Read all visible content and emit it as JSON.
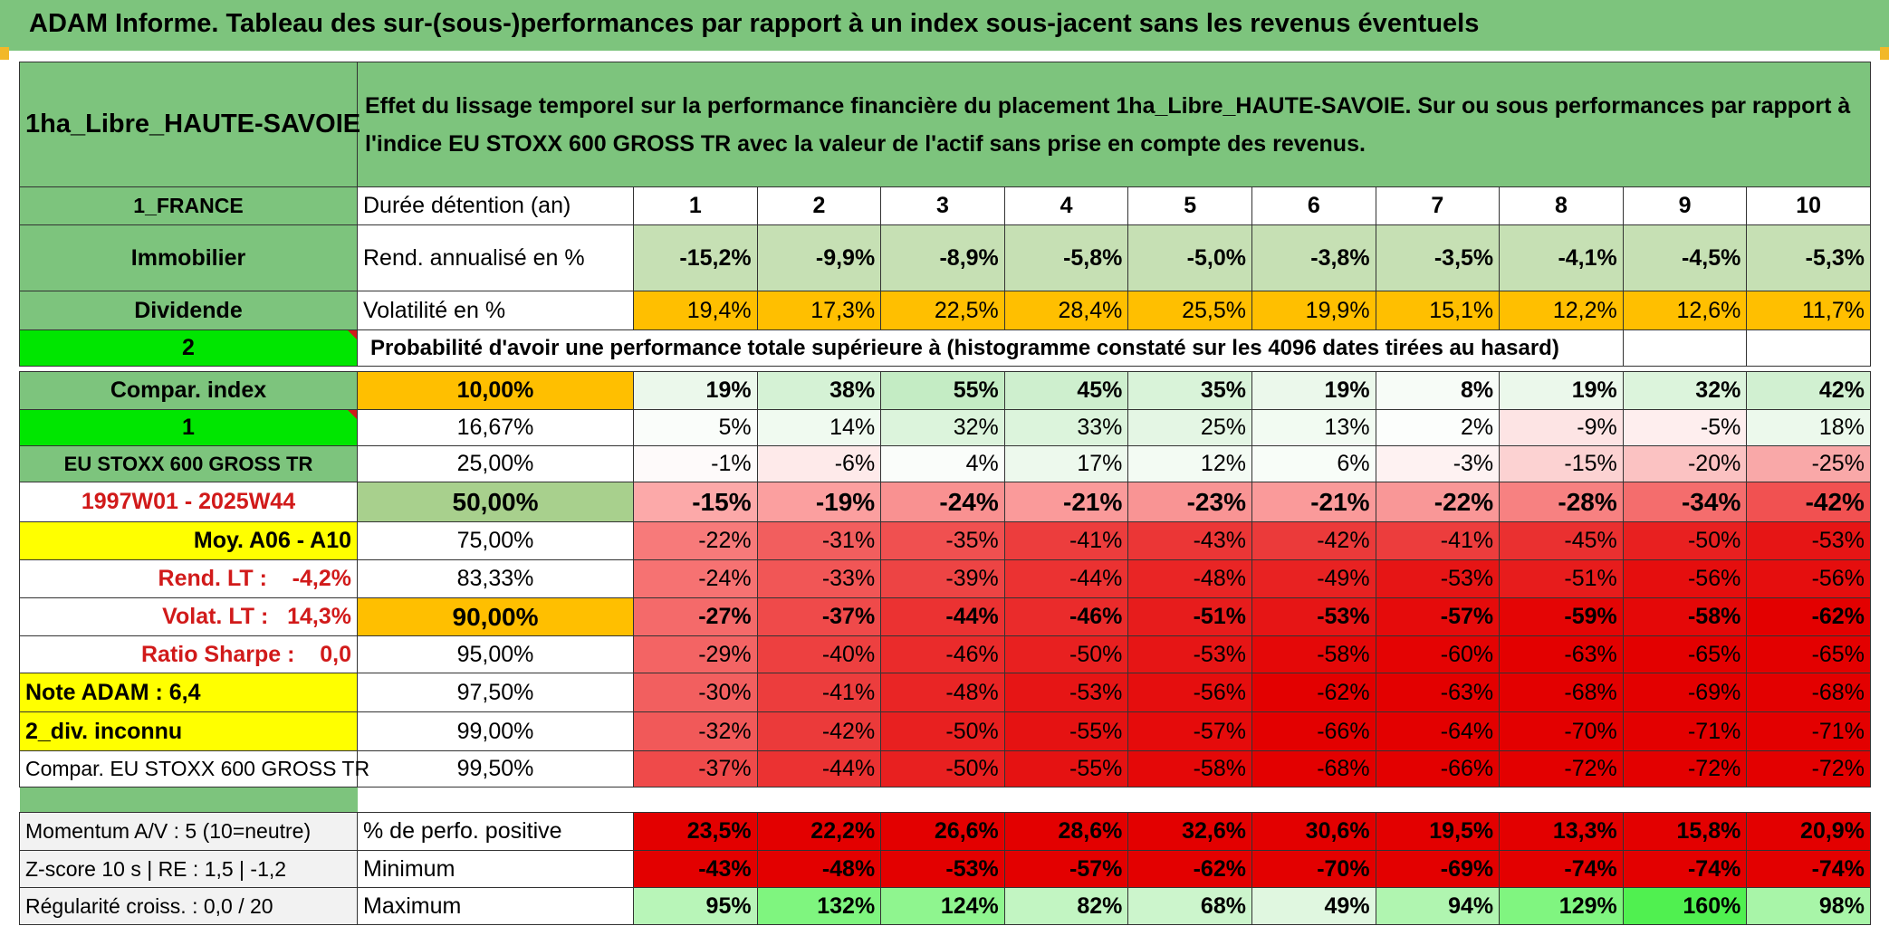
{
  "title": "ADAM Informe. Tableau des sur-(sous-)performances par rapport à un index sous-jacent sans les revenus éventuels",
  "fund_name": "1ha_Libre_HAUTE-SAVOIE",
  "description": "Effet du lissage temporel sur la performance financière du placement 1ha_Libre_HAUTE-SAVOIE. Sur ou sous performances par rapport à l'indice EU STOXX 600 GROSS TR avec la valeur de l'actif sans prise en compte des revenus.",
  "left": {
    "country": "1_FRANCE",
    "category": "Immobilier",
    "type": "Dividende",
    "index_no": "2",
    "compar_index": "Compar. index",
    "one": "1",
    "index_name": "EU STOXX 600 GROSS TR",
    "period": "1997W01 - 2025W44",
    "moy": "Moy. A06 - A10",
    "rend_lt": "Rend. LT :    -4,2%",
    "volat_lt": "Volat. LT :   14,3%",
    "sharpe": "Ratio Sharpe :    0,0",
    "note": "Note ADAM : 6,4",
    "div": "2_div. inconnu",
    "compar": "Compar. EU STOXX 600 GROSS TR",
    "momentum": "Momentum A/V : 5 (10=neutre)",
    "zscore": "Z-score 10 s | RE : 1,5 | -1,2",
    "regularite": "Régularité croiss. : 0,0 / 20"
  },
  "labels": {
    "duree": "Durée détention (an)",
    "rend": "Rend. annualisé en %",
    "volat": "Volatilité en %",
    "proba": "Probabilité d'avoir une performance totale supérieure à (histogramme constaté sur les 4096 dates tirées au hasard)",
    "perfo_pos": "% de perfo. positive",
    "minimum": "Minimum",
    "maximum": "Maximum"
  },
  "years": [
    "1",
    "2",
    "3",
    "4",
    "5",
    "6",
    "7",
    "8",
    "9",
    "10"
  ],
  "rend": [
    "-15,2%",
    "-9,9%",
    "-8,9%",
    "-5,8%",
    "-5,0%",
    "-3,8%",
    "-3,5%",
    "-4,1%",
    "-4,5%",
    "-5,3%"
  ],
  "volat": [
    "19,4%",
    "17,3%",
    "22,5%",
    "28,4%",
    "25,5%",
    "19,9%",
    "15,1%",
    "12,2%",
    "12,6%",
    "11,7%"
  ],
  "quantiles": [
    {
      "label": "10,00%",
      "values": [
        "19%",
        "38%",
        "55%",
        "45%",
        "35%",
        "19%",
        "8%",
        "19%",
        "32%",
        "42%"
      ],
      "colors": [
        "#ebf8eb",
        "#d5f2d5",
        "#c4ecc4",
        "#ceefce",
        "#d9f3d9",
        "#ebf8eb",
        "#f7fcf7",
        "#ebf8eb",
        "#dcf4dc",
        "#d1f0d1"
      ]
    },
    {
      "label": "16,67%",
      "values": [
        "5%",
        "14%",
        "32%",
        "33%",
        "25%",
        "13%",
        "2%",
        "-9%",
        "-5%",
        "18%"
      ],
      "colors": [
        "#fafdfa",
        "#f0faf0",
        "#dcf4dc",
        "#dcf4dc",
        "#e4f6e4",
        "#f2fbf2",
        "#fcfefc",
        "#fde4e4",
        "#feeeee",
        "#ecf9ec"
      ]
    },
    {
      "label": "25,00%",
      "values": [
        "-1%",
        "-6%",
        "4%",
        "17%",
        "12%",
        "6%",
        "-3%",
        "-15%",
        "-20%",
        "-25%"
      ],
      "colors": [
        "#fefafa",
        "#feeaea",
        "#fafdfa",
        "#edf9ed",
        "#f3fbf3",
        "#f8fdf8",
        "#fef2f2",
        "#fcd2d2",
        "#fbc2c2",
        "#f9a8a8"
      ]
    },
    {
      "label": "50,00%",
      "values": [
        "-15%",
        "-19%",
        "-24%",
        "-21%",
        "-23%",
        "-21%",
        "-22%",
        "-28%",
        "-34%",
        "-42%"
      ],
      "colors": [
        "#fca9a9",
        "#fb9f9f",
        "#f99191",
        "#fa9a9a",
        "#f99494",
        "#fa9a9a",
        "#f99797",
        "#f78181",
        "#f46d6d",
        "#f15151"
      ]
    },
    {
      "label": "75,00%",
      "values": [
        "-22%",
        "-31%",
        "-35%",
        "-41%",
        "-43%",
        "-42%",
        "-41%",
        "-45%",
        "-50%",
        "-53%"
      ],
      "colors": [
        "#f77a7a",
        "#f25e5e",
        "#f05050",
        "#ec3d3d",
        "#eb3636",
        "#eb3a3a",
        "#ec3d3d",
        "#ea3030",
        "#e82020",
        "#e61515"
      ]
    },
    {
      "label": "83,33%",
      "values": [
        "-24%",
        "-33%",
        "-39%",
        "-44%",
        "-48%",
        "-49%",
        "-53%",
        "-51%",
        "-56%",
        "-56%"
      ],
      "colors": [
        "#f67272",
        "#f15656",
        "#ed4444",
        "#eb3232",
        "#e92525",
        "#e82222",
        "#e61515",
        "#e71c1c",
        "#e50e0e",
        "#e50e0e"
      ]
    },
    {
      "label": "90,00%",
      "values": [
        "-27%",
        "-37%",
        "-44%",
        "-46%",
        "-51%",
        "-53%",
        "-57%",
        "-59%",
        "-58%",
        "-62%"
      ],
      "colors": [
        "#f46a6a",
        "#ef4a4a",
        "#eb3232",
        "#ea2b2b",
        "#e71c1c",
        "#e61515",
        "#e50b0b",
        "#e40505",
        "#e40808",
        "#e30000"
      ]
    },
    {
      "label": "95,00%",
      "values": [
        "-29%",
        "-40%",
        "-46%",
        "-50%",
        "-53%",
        "-58%",
        "-60%",
        "-63%",
        "-65%",
        "-65%"
      ],
      "colors": [
        "#f36464",
        "#ed4040",
        "#ea2b2b",
        "#e82020",
        "#e61515",
        "#e40808",
        "#e40303",
        "#e30000",
        "#e30000",
        "#e30000"
      ]
    },
    {
      "label": "97,50%",
      "values": [
        "-30%",
        "-41%",
        "-48%",
        "-53%",
        "-56%",
        "-62%",
        "-63%",
        "-68%",
        "-69%",
        "-68%"
      ],
      "colors": [
        "#f25f5f",
        "#ec3d3d",
        "#e92525",
        "#e61515",
        "#e50e0e",
        "#e30000",
        "#e30000",
        "#e30000",
        "#e30000",
        "#e30000"
      ]
    },
    {
      "label": "99,00%",
      "values": [
        "-32%",
        "-42%",
        "-50%",
        "-55%",
        "-57%",
        "-66%",
        "-64%",
        "-70%",
        "-71%",
        "-71%"
      ],
      "colors": [
        "#f15959",
        "#eb3a3a",
        "#e82020",
        "#e51212",
        "#e50b0b",
        "#e30000",
        "#e30000",
        "#e30000",
        "#e30000",
        "#e30000"
      ]
    },
    {
      "label": "99,50%",
      "values": [
        "-37%",
        "-44%",
        "-50%",
        "-55%",
        "-58%",
        "-68%",
        "-66%",
        "-72%",
        "-72%",
        "-72%"
      ],
      "colors": [
        "#ef4a4a",
        "#eb3232",
        "#e82020",
        "#e51212",
        "#e40808",
        "#e30000",
        "#e30000",
        "#e30000",
        "#e30000",
        "#e30000"
      ]
    }
  ],
  "perfo_pos": [
    "23,5%",
    "22,2%",
    "26,6%",
    "28,6%",
    "32,6%",
    "30,6%",
    "19,5%",
    "13,3%",
    "15,8%",
    "20,9%"
  ],
  "minimum": [
    "-43%",
    "-48%",
    "-53%",
    "-57%",
    "-62%",
    "-70%",
    "-69%",
    "-74%",
    "-74%",
    "-74%"
  ],
  "maximum": [
    "95%",
    "132%",
    "124%",
    "82%",
    "68%",
    "49%",
    "94%",
    "129%",
    "160%",
    "98%"
  ],
  "colors": {
    "header_green": "#7dc47d",
    "rend_cell": "#c6e0b4",
    "volat_cell": "#ffbf00",
    "bright_green": "#00e600",
    "yellow": "#ffff00",
    "red_text": "#d11a1a",
    "neg_red": "#e30000",
    "max_cells": [
      "#b8f5b8",
      "#7ff57f",
      "#8ff58f",
      "#c2f5c2",
      "#ccf5cc",
      "#e0f7e0",
      "#b0f5b0",
      "#80f580",
      "#50f050",
      "#a8f5a8"
    ]
  }
}
